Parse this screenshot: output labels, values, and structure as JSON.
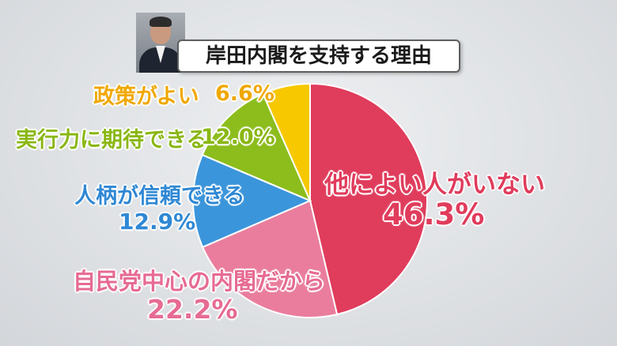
{
  "chart_data": {
    "type": "pie",
    "title": "岸田内閣を支持する理由",
    "slices": [
      {
        "label": "他によい人がいない",
        "value": 46.3,
        "value_text": "46.3%",
        "color": "#e03c5c"
      },
      {
        "label": "自民党中心の内閣だから",
        "value": 22.2,
        "value_text": "22.2%",
        "color": "#ea7d9d"
      },
      {
        "label": "人柄が信頼できる",
        "value": 12.9,
        "value_text": "12.9%",
        "color": "#3b95db"
      },
      {
        "label": "実行力に期待できる",
        "value": 12.0,
        "value_text": "12.0%",
        "color": "#8cbd1c"
      },
      {
        "label": "政策がよい",
        "value": 6.6,
        "value_text": "6.6%",
        "color": "#f7c800"
      }
    ],
    "start": "12 o'clock",
    "direction": "clockwise"
  },
  "icons": {
    "portrait": "person-photo"
  }
}
